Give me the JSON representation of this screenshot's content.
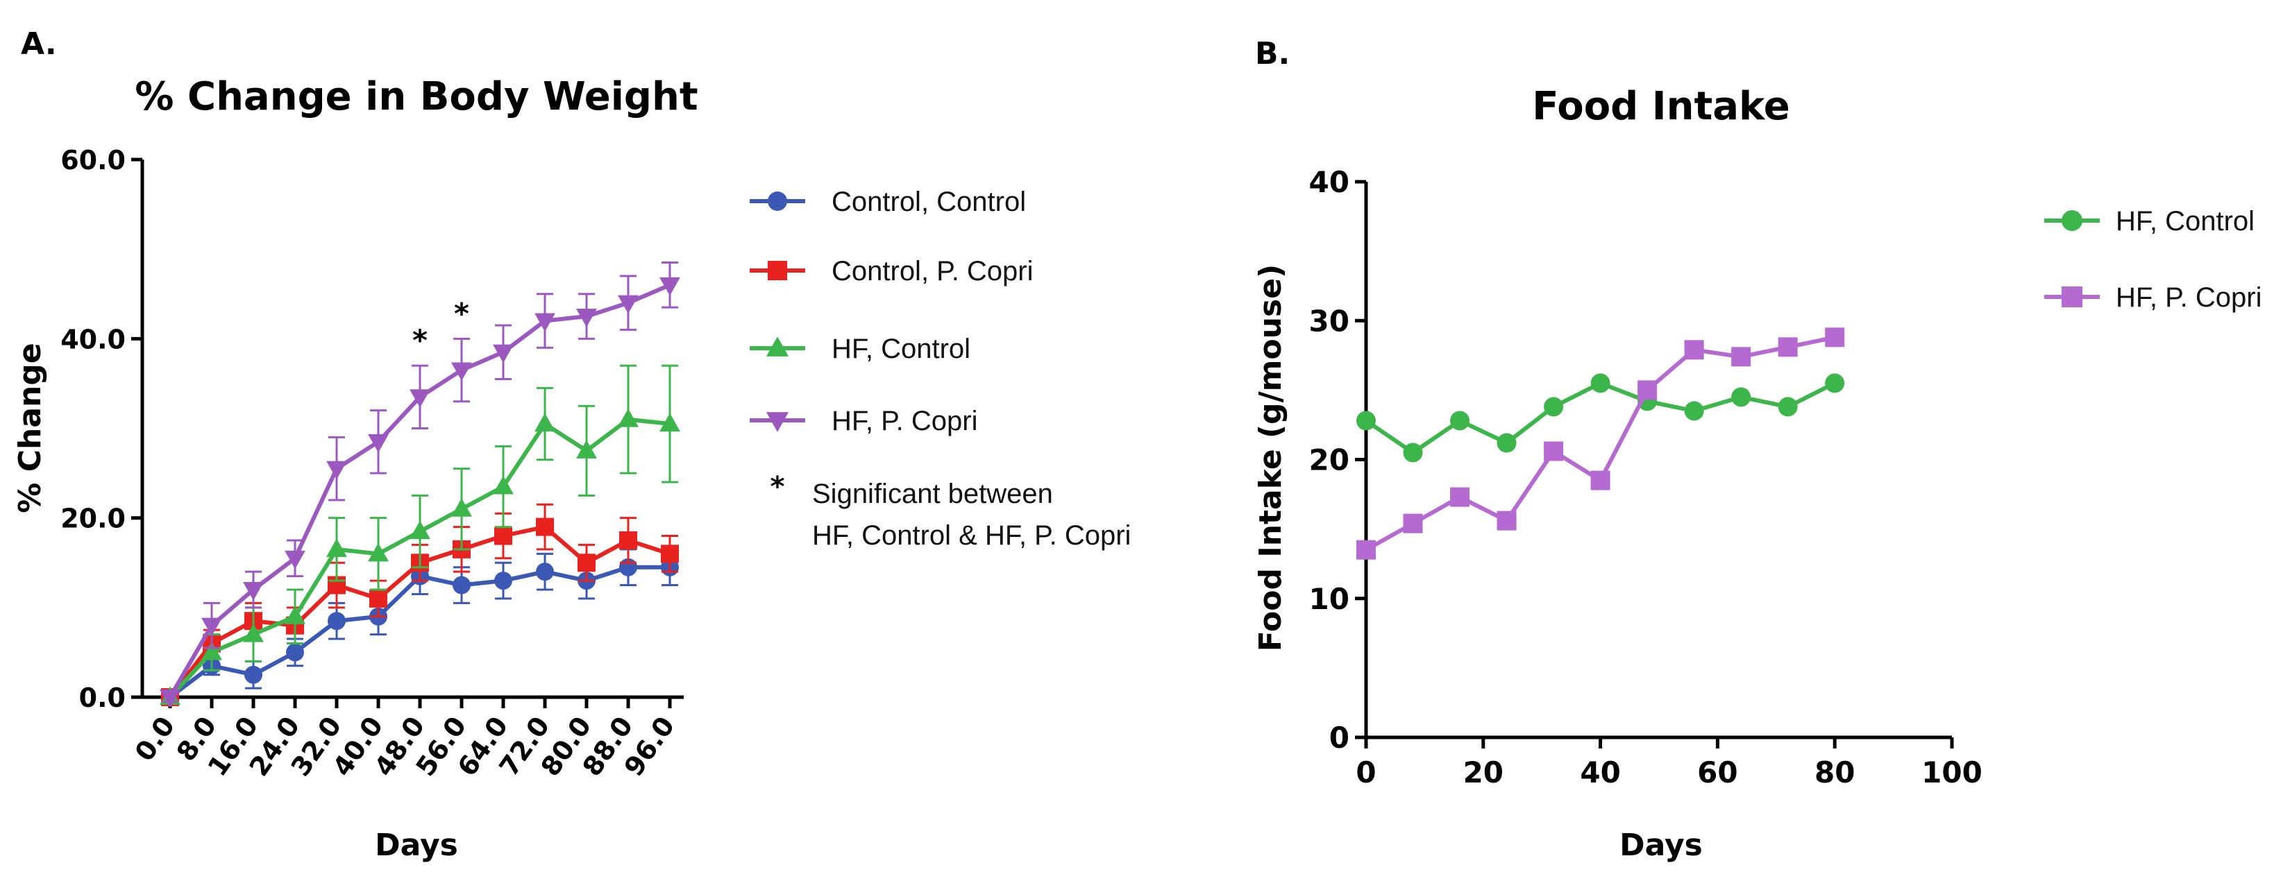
{
  "panels": {
    "a": {
      "label": "A."
    },
    "b": {
      "label": "B."
    }
  },
  "legend_a": {
    "note_symbol": "*",
    "note_line1": "Significant between",
    "note_line2": "HF, Control & HF, P. Copri"
  },
  "chart_data": [
    {
      "type": "line",
      "title": "% Change in Body Weight",
      "xlabel": "Days",
      "ylabel": "% Change",
      "x": [
        0,
        8,
        16,
        24,
        32,
        40,
        48,
        56,
        64,
        72,
        80,
        88,
        96
      ],
      "x_tick_labels": [
        "0.0",
        "8.0",
        "16.0",
        "24.0",
        "32.0",
        "40.0",
        "48.0",
        "56.0",
        "64.0",
        "72.0",
        "80.0",
        "88.0",
        "96.0"
      ],
      "ylim": [
        0,
        60
      ],
      "y_ticks": [
        0,
        20,
        40,
        60
      ],
      "y_tick_labels": [
        "0.0",
        "20.0",
        "40.0",
        "60.0"
      ],
      "series": [
        {
          "name": "Control, Control",
          "color": "#3a58b4",
          "marker": "circle",
          "values": [
            0,
            3.5,
            2.5,
            5,
            8.5,
            9,
            13.5,
            12.5,
            13,
            14,
            13,
            14.5,
            14.5
          ],
          "errors": [
            0.5,
            1,
            1.5,
            1.5,
            2,
            2,
            2,
            2,
            2,
            2,
            2,
            2,
            2
          ]
        },
        {
          "name": "Control, P. Copri",
          "color": "#e8231f",
          "marker": "square",
          "values": [
            0,
            6,
            8.5,
            8,
            12.5,
            11,
            15,
            16.5,
            18,
            19,
            15,
            17.5,
            16
          ],
          "errors": [
            0.5,
            1.5,
            2,
            2,
            2.5,
            2,
            2,
            2.5,
            2.5,
            2.5,
            2,
            2.5,
            2
          ]
        },
        {
          "name": "HF, Control",
          "color": "#3cb54a",
          "marker": "triangle-up",
          "values": [
            0,
            5,
            7,
            9,
            16.5,
            16,
            18.5,
            21,
            23.5,
            30.5,
            27.5,
            31,
            30.5
          ],
          "errors": [
            0.5,
            2,
            3,
            3,
            3.5,
            4,
            4,
            4.5,
            4.5,
            4,
            5,
            6,
            6.5
          ]
        },
        {
          "name": "HF, P. Copri",
          "color": "#9b59c0",
          "marker": "triangle-down",
          "values": [
            0,
            8,
            12,
            15.5,
            25.5,
            28.5,
            33.5,
            36.5,
            38.5,
            42,
            42.5,
            44,
            46
          ],
          "errors": [
            0.5,
            2.5,
            2,
            2,
            3.5,
            3.5,
            3.5,
            3.5,
            3,
            3,
            2.5,
            3,
            2.5
          ]
        }
      ],
      "annotations": [
        {
          "x": 48,
          "text": "*"
        },
        {
          "x": 56,
          "text": "*"
        }
      ]
    },
    {
      "type": "line",
      "title": "Food Intake",
      "xlabel": "Days",
      "ylabel": "Food Intake (g/mouse)",
      "x": [
        0,
        8,
        16,
        24,
        32,
        40,
        48,
        56,
        64,
        72,
        80
      ],
      "xlim": [
        0,
        100
      ],
      "x_ticks": [
        0,
        20,
        40,
        60,
        80,
        100
      ],
      "x_tick_labels": [
        "0",
        "20",
        "40",
        "60",
        "80",
        "100"
      ],
      "ylim": [
        0,
        40
      ],
      "y_ticks": [
        0,
        10,
        20,
        30,
        40
      ],
      "y_tick_labels": [
        "0",
        "10",
        "20",
        "30",
        "40"
      ],
      "series": [
        {
          "name": "HF, Control",
          "color": "#3cb54a",
          "marker": "circle",
          "values": [
            22.8,
            20.5,
            22.8,
            21.2,
            23.8,
            25.5,
            24.2,
            23.5,
            24.5,
            23.8,
            25.5
          ]
        },
        {
          "name": "HF, P. Copri",
          "color": "#b46ad0",
          "marker": "square",
          "values": [
            13.5,
            15.4,
            17.3,
            15.6,
            20.6,
            18.5,
            25.0,
            27.9,
            27.4,
            28.1,
            28.8
          ]
        }
      ]
    }
  ]
}
